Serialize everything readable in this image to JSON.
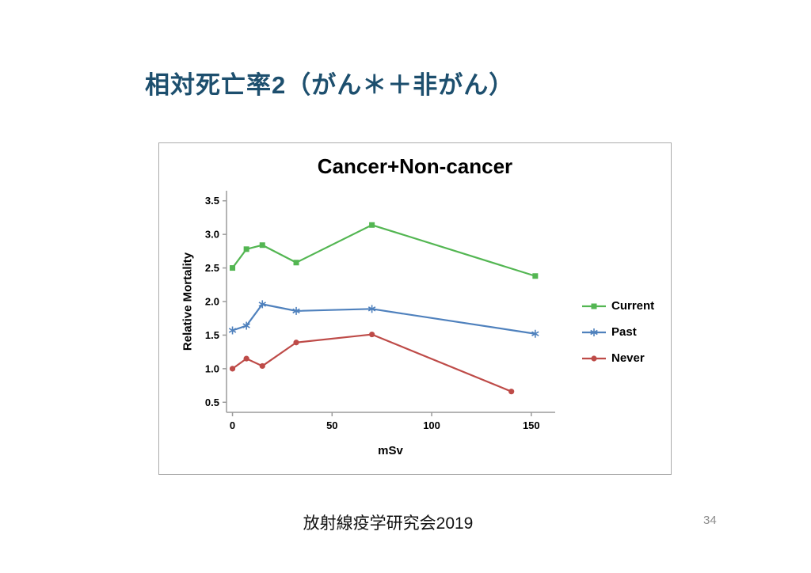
{
  "slide": {
    "title": "相対死亡率2（がん＊＋非がん）",
    "footer": "放射線疫学研究会2019",
    "page_number": "34"
  },
  "chart_data": {
    "type": "line",
    "title": "Cancer+Non-cancer",
    "xlabel": "mSv",
    "ylabel": "Relative Mortality",
    "xlim": [
      -3,
      162
    ],
    "ylim": [
      0.35,
      3.65
    ],
    "xticks": [
      0,
      50,
      100,
      150
    ],
    "yticks": [
      0.5,
      1.0,
      1.5,
      2.0,
      2.5,
      3.0,
      3.5
    ],
    "grid": false,
    "legend_position": "right",
    "axis_color": "#9b9b9b",
    "series": [
      {
        "name": "Current",
        "color": "#53B652",
        "marker": "square",
        "x": [
          0,
          7,
          15,
          32,
          70,
          152
        ],
        "y": [
          2.5,
          2.78,
          2.84,
          2.58,
          3.14,
          2.38
        ]
      },
      {
        "name": "Past",
        "color": "#4F81BD",
        "marker": "asterisk",
        "x": [
          0,
          7,
          15,
          32,
          70,
          152
        ],
        "y": [
          1.57,
          1.64,
          1.96,
          1.86,
          1.89,
          1.52
        ]
      },
      {
        "name": "Never",
        "color": "#BE4B48",
        "marker": "circle",
        "x": [
          0,
          7,
          15,
          32,
          70,
          140
        ],
        "y": [
          1.0,
          1.15,
          1.04,
          1.39,
          1.51,
          0.66
        ]
      }
    ]
  }
}
